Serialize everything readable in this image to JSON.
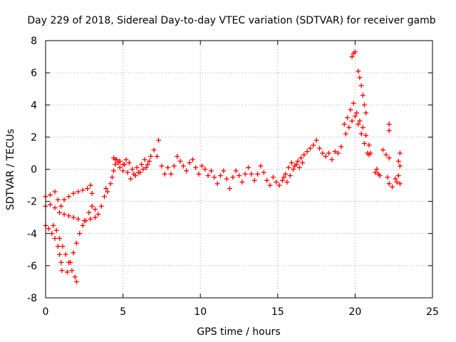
{
  "chart_data": {
    "type": "scatter",
    "title": "Day 229 of 2018, Sidereal Day-to-day VTEC variation (SDTVAR) for receiver gamb",
    "xlabel": "GPS time / hours",
    "ylabel": "SDTVAR / TECUs",
    "xlim": [
      0,
      25
    ],
    "ylim": [
      -8,
      8
    ],
    "xticks": [
      0,
      5,
      10,
      15,
      20,
      25
    ],
    "yticks": [
      -8,
      -6,
      -4,
      -2,
      0,
      2,
      4,
      6,
      8
    ],
    "grid": true,
    "marker": "+",
    "color": "#ff0000",
    "series": [
      {
        "name": "SDTVAR",
        "points": [
          [
            0.0,
            -1.7
          ],
          [
            0.3,
            -1.6
          ],
          [
            0.6,
            -1.4
          ],
          [
            0.8,
            -1.9
          ],
          [
            1.0,
            -2.3
          ],
          [
            1.2,
            -1.9
          ],
          [
            1.5,
            -1.7
          ],
          [
            1.8,
            -1.5
          ],
          [
            2.1,
            -1.4
          ],
          [
            2.4,
            -1.3
          ],
          [
            2.7,
            -1.2
          ],
          [
            2.9,
            -1.0
          ],
          [
            3.0,
            -1.5
          ],
          [
            0.0,
            -2.3
          ],
          [
            0.3,
            -2.2
          ],
          [
            0.6,
            -2.4
          ],
          [
            0.9,
            -2.7
          ],
          [
            1.2,
            -2.8
          ],
          [
            1.5,
            -2.9
          ],
          [
            1.8,
            -3.0
          ],
          [
            2.1,
            -3.1
          ],
          [
            2.5,
            -3.2
          ],
          [
            2.9,
            -3.1
          ],
          [
            3.2,
            -3.0
          ],
          [
            0.0,
            -3.5
          ],
          [
            0.2,
            -3.7
          ],
          [
            0.4,
            -4.0
          ],
          [
            0.6,
            -4.3
          ],
          [
            0.8,
            -4.8
          ],
          [
            0.9,
            -5.3
          ],
          [
            1.0,
            -5.8
          ],
          [
            1.05,
            -6.3
          ],
          [
            0.5,
            -3.5
          ],
          [
            0.7,
            -3.8
          ],
          [
            0.9,
            -4.3
          ],
          [
            1.1,
            -4.8
          ],
          [
            1.3,
            -5.3
          ],
          [
            1.5,
            -5.8
          ],
          [
            1.7,
            -6.3
          ],
          [
            1.9,
            -6.7
          ],
          [
            2.0,
            -7.0
          ],
          [
            1.4,
            -6.4
          ],
          [
            1.6,
            -5.8
          ],
          [
            1.8,
            -5.2
          ],
          [
            2.0,
            -4.6
          ],
          [
            2.2,
            -4.0
          ],
          [
            2.4,
            -3.5
          ],
          [
            2.6,
            -3.2
          ],
          [
            2.8,
            -2.7
          ],
          [
            3.0,
            -2.3
          ],
          [
            3.2,
            -2.5
          ],
          [
            3.4,
            -2.8
          ],
          [
            3.6,
            -2.3
          ],
          [
            3.8,
            -1.7
          ],
          [
            3.9,
            -1.2
          ],
          [
            4.0,
            -1.4
          ],
          [
            4.2,
            -0.9
          ],
          [
            4.3,
            -0.5
          ],
          [
            4.4,
            -0.1
          ],
          [
            4.5,
            0.3
          ],
          [
            4.6,
            0.6
          ],
          [
            4.8,
            0.5
          ],
          [
            5.0,
            0.3
          ],
          [
            5.2,
            0.6
          ],
          [
            5.4,
            0.4
          ],
          [
            5.6,
            0.0
          ],
          [
            5.8,
            -0.4
          ],
          [
            6.0,
            -0.2
          ],
          [
            6.2,
            0.3
          ],
          [
            6.4,
            0.6
          ],
          [
            6.6,
            0.3
          ],
          [
            6.8,
            0.8
          ],
          [
            7.0,
            1.2
          ],
          [
            7.2,
            0.8
          ],
          [
            7.3,
            1.8
          ],
          [
            7.5,
            0.2
          ],
          [
            7.7,
            -0.3
          ],
          [
            7.9,
            0.1
          ],
          [
            8.1,
            -0.3
          ],
          [
            8.3,
            0.2
          ],
          [
            8.5,
            0.8
          ],
          [
            8.7,
            0.5
          ],
          [
            8.9,
            0.2
          ],
          [
            9.1,
            -0.1
          ],
          [
            9.3,
            0.4
          ],
          [
            9.5,
            0.6
          ],
          [
            9.7,
            0.1
          ],
          [
            9.9,
            -0.3
          ],
          [
            10.1,
            0.2
          ],
          [
            10.3,
            0.0
          ],
          [
            10.5,
            -0.4
          ],
          [
            10.7,
            -0.1
          ],
          [
            10.9,
            -0.5
          ],
          [
            11.1,
            -0.9
          ],
          [
            11.3,
            -0.4
          ],
          [
            11.5,
            -0.1
          ],
          [
            11.7,
            -0.6
          ],
          [
            11.9,
            -1.2
          ],
          [
            12.1,
            -0.5
          ],
          [
            12.3,
            -0.1
          ],
          [
            12.5,
            -0.4
          ],
          [
            12.7,
            -0.8
          ],
          [
            12.9,
            -0.3
          ],
          [
            13.1,
            0.1
          ],
          [
            13.3,
            -0.3
          ],
          [
            13.5,
            -0.7
          ],
          [
            13.7,
            -0.3
          ],
          [
            13.9,
            0.2
          ],
          [
            14.1,
            -0.2
          ],
          [
            14.3,
            -0.7
          ],
          [
            14.5,
            -1.0
          ],
          [
            14.7,
            -0.5
          ],
          [
            14.9,
            -0.8
          ],
          [
            15.1,
            -1.0
          ],
          [
            15.3,
            -0.7
          ],
          [
            15.5,
            -0.3
          ],
          [
            15.7,
            0.1
          ],
          [
            15.9,
            0.4
          ],
          [
            16.1,
            0.2
          ],
          [
            16.3,
            0.5
          ],
          [
            16.5,
            0.7
          ],
          [
            16.7,
            0.9
          ],
          [
            16.9,
            1.1
          ],
          [
            17.1,
            1.3
          ],
          [
            17.3,
            1.5
          ],
          [
            17.5,
            1.8
          ],
          [
            17.7,
            1.3
          ],
          [
            17.9,
            1.0
          ],
          [
            18.1,
            0.8
          ],
          [
            18.3,
            1.0
          ],
          [
            18.5,
            0.6
          ],
          [
            18.7,
            1.1
          ],
          [
            18.9,
            1.0
          ],
          [
            19.1,
            1.4
          ],
          [
            19.3,
            2.8
          ],
          [
            19.5,
            3.2
          ],
          [
            19.7,
            3.7
          ],
          [
            19.9,
            4.1
          ],
          [
            20.1,
            3.5
          ],
          [
            20.3,
            3.0
          ],
          [
            20.5,
            2.6
          ],
          [
            20.7,
            2.1
          ],
          [
            20.9,
            1.5
          ],
          [
            21.0,
            1.0
          ],
          [
            4.4,
            0.7
          ],
          [
            4.5,
            0.6
          ],
          [
            4.7,
            0.4
          ],
          [
            4.8,
            0.1
          ],
          [
            5.0,
            -0.1
          ],
          [
            5.1,
            0.3
          ],
          [
            5.3,
            -0.2
          ],
          [
            5.5,
            -0.6
          ],
          [
            5.7,
            -0.3
          ],
          [
            5.9,
            0.1
          ],
          [
            6.1,
            -0.2
          ],
          [
            6.3,
            0.0
          ],
          [
            6.5,
            0.1
          ],
          [
            6.7,
            0.5
          ],
          [
            15.4,
            -0.5
          ],
          [
            15.6,
            -0.8
          ],
          [
            15.8,
            -0.4
          ],
          [
            16.0,
            0.0
          ],
          [
            16.2,
            0.3
          ],
          [
            16.4,
            0.1
          ],
          [
            16.6,
            0.4
          ],
          [
            19.4,
            2.2
          ],
          [
            19.6,
            2.6
          ],
          [
            19.8,
            3.0
          ],
          [
            20.0,
            3.3
          ],
          [
            20.2,
            2.8
          ],
          [
            20.4,
            2.2
          ],
          [
            20.6,
            1.6
          ],
          [
            20.8,
            1.0
          ],
          [
            19.8,
            7.0
          ],
          [
            19.9,
            7.2
          ],
          [
            20.0,
            7.3
          ],
          [
            20.2,
            6.1
          ],
          [
            20.3,
            5.7
          ],
          [
            20.4,
            5.2
          ],
          [
            20.5,
            4.6
          ],
          [
            20.6,
            4.0
          ],
          [
            20.7,
            3.5
          ],
          [
            20.9,
            0.9
          ],
          [
            21.3,
            -0.2
          ],
          [
            21.4,
            0.0
          ],
          [
            21.5,
            -0.3
          ],
          [
            21.6,
            -0.4
          ],
          [
            21.8,
            1.2
          ],
          [
            22.0,
            0.9
          ],
          [
            22.2,
            0.7
          ],
          [
            22.2,
            2.8
          ],
          [
            22.2,
            2.4
          ],
          [
            22.1,
            -0.5
          ],
          [
            22.2,
            -0.9
          ],
          [
            22.4,
            -1.1
          ],
          [
            22.6,
            -0.6
          ],
          [
            22.7,
            -0.8
          ],
          [
            22.8,
            -0.4
          ],
          [
            22.8,
            0.5
          ],
          [
            22.9,
            1.0
          ],
          [
            22.9,
            -0.9
          ],
          [
            22.9,
            0.2
          ]
        ]
      }
    ]
  }
}
